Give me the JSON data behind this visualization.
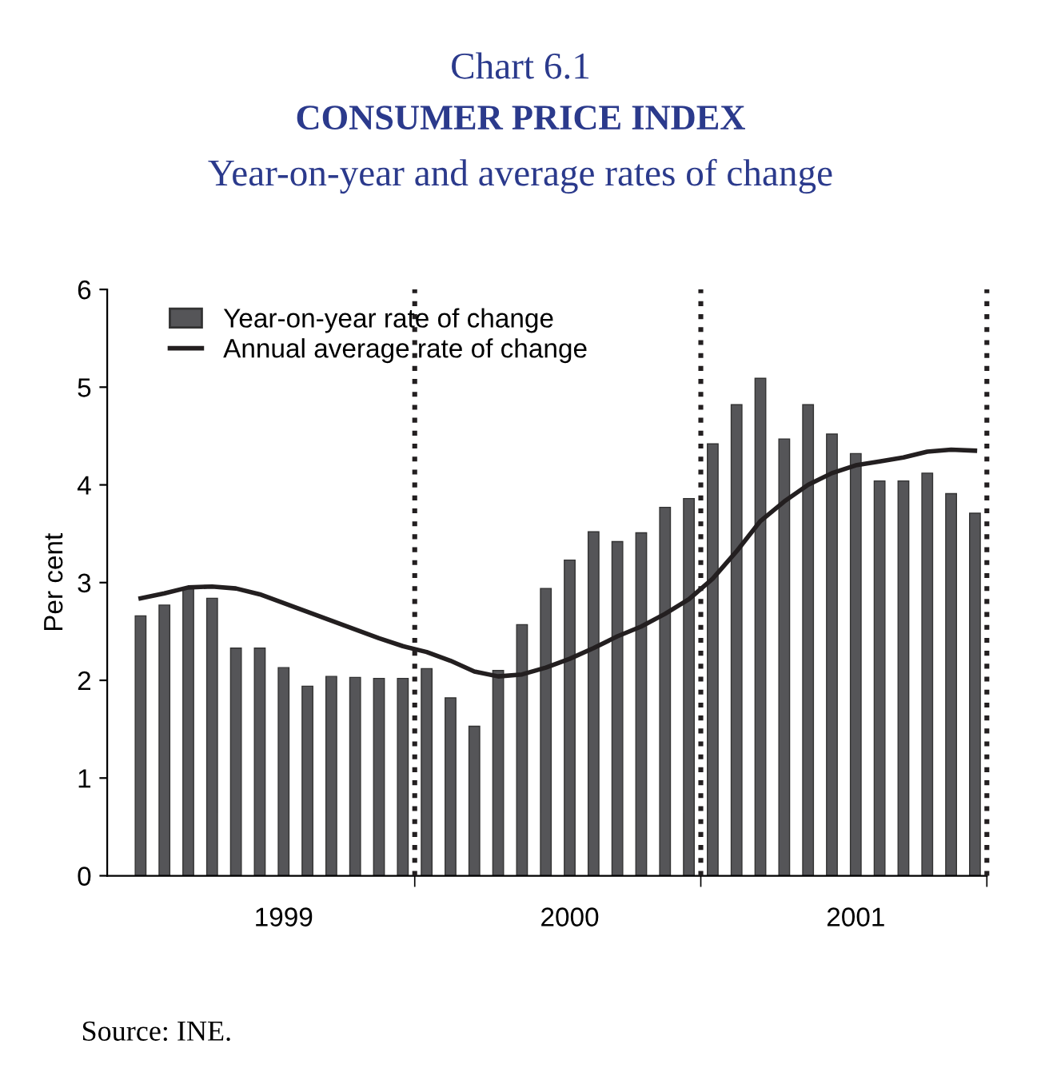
{
  "chart_data": {
    "type": "bar",
    "title": "Chart 6.1\nCONSUMER PRICE INDEX",
    "subtitle": "Year-on-year and average rates of change",
    "ylabel": "Per cent",
    "categories": [
      null,
      null,
      null,
      null,
      null,
      null,
      "1999",
      null,
      null,
      null,
      null,
      null,
      null,
      null,
      null,
      null,
      null,
      null,
      "2000",
      null,
      null,
      null,
      null,
      null,
      null,
      null,
      null,
      null,
      null,
      null,
      "2001",
      null,
      null,
      null,
      null,
      null
    ],
    "ylim": [
      0,
      6
    ],
    "yticks": [
      0,
      1,
      2,
      3,
      4,
      5,
      6
    ],
    "series": [
      {
        "name": "Year-on-year rate of change",
        "color": "#555558",
        "values": [
          2.66,
          2.77,
          2.95,
          2.84,
          2.33,
          2.33,
          2.13,
          1.94,
          2.04,
          2.03,
          2.02,
          2.02,
          2.12,
          1.82,
          1.53,
          2.1,
          2.57,
          2.94,
          3.23,
          3.52,
          3.42,
          3.51,
          3.77,
          3.86,
          4.42,
          4.82,
          5.09,
          4.47,
          4.82,
          4.52,
          4.32,
          4.04,
          4.04,
          4.12,
          3.91,
          3.71
        ]
      },
      {
        "name": "Annual average rate of change",
        "type": "line",
        "color": "#231f20",
        "values": [
          2.84,
          2.89,
          2.95,
          2.96,
          2.94,
          2.88,
          2.79,
          2.7,
          2.61,
          2.52,
          2.43,
          2.35,
          2.29,
          2.2,
          2.09,
          2.04,
          2.06,
          2.13,
          2.22,
          2.33,
          2.45,
          2.55,
          2.68,
          2.83,
          3.04,
          3.32,
          3.63,
          3.83,
          4.0,
          4.12,
          4.2,
          4.24,
          4.28,
          4.34,
          4.36,
          4.35
        ]
      }
    ],
    "legend": "top left",
    "grid": "x",
    "marker": "none",
    "line_style": "solid",
    "annotations": [
      "Source: INE."
    ]
  }
}
